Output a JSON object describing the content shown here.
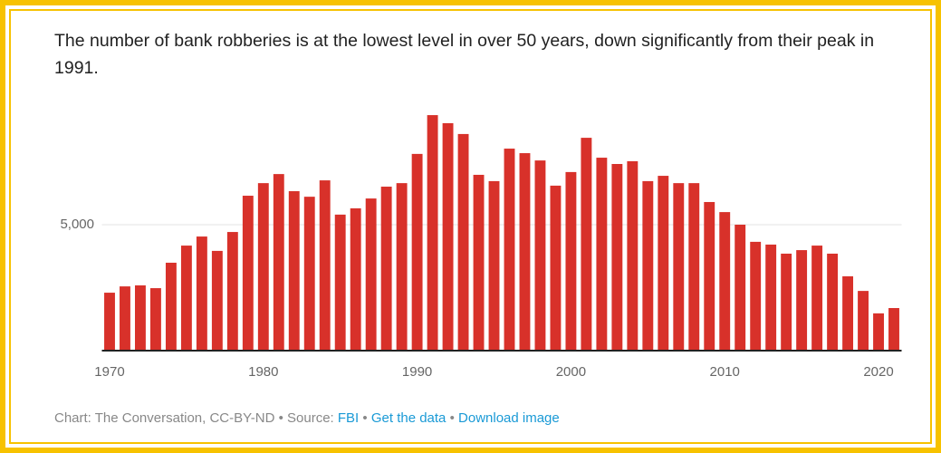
{
  "chart_data": {
    "type": "bar",
    "title": "The number of bank robberies is at the lowest level in over 50 years, down significantly from their peak in 1991.",
    "x": [
      1970,
      1971,
      1972,
      1973,
      1974,
      1975,
      1976,
      1977,
      1978,
      1979,
      1980,
      1981,
      1982,
      1983,
      1984,
      1985,
      1986,
      1987,
      1988,
      1989,
      1990,
      1991,
      1992,
      1993,
      1994,
      1995,
      1996,
      1997,
      1998,
      1999,
      2000,
      2001,
      2002,
      2003,
      2004,
      2005,
      2006,
      2007,
      2008,
      2009,
      2010,
      2011,
      2012,
      2013,
      2014,
      2015,
      2016,
      2017,
      2018,
      2019,
      2020,
      2021
    ],
    "values": [
      2300,
      2550,
      2590,
      2480,
      3490,
      4170,
      4530,
      3960,
      4710,
      6150,
      6650,
      7010,
      6330,
      6110,
      6760,
      5400,
      5650,
      6040,
      6510,
      6650,
      7810,
      9350,
      9030,
      8600,
      6980,
      6730,
      8020,
      7840,
      7550,
      6550,
      7090,
      8450,
      7660,
      7410,
      7520,
      6730,
      6940,
      6650,
      6650,
      5900,
      5500,
      5000,
      4320,
      4210,
      3850,
      3990,
      4170,
      3850,
      2950,
      2370,
      1480,
      1690
    ],
    "color": "#d8312a",
    "xlim": [
      1969.5,
      2021.5
    ],
    "xticks": [
      1970,
      1980,
      1990,
      2000,
      2010,
      2020
    ],
    "ylim": [
      0,
      10000
    ],
    "yticks": [
      {
        "value": 5000,
        "label": "5,000"
      }
    ],
    "grid": true,
    "footer": {
      "credit": "Chart: The Conversation, CC-BY-ND • Source:",
      "source_link": "FBI",
      "separator": "•",
      "links": [
        "Get the data",
        "Download image"
      ]
    }
  }
}
